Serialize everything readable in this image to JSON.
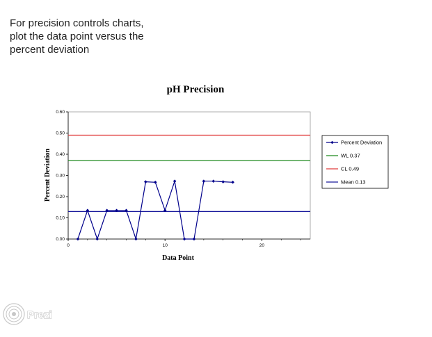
{
  "slide": {
    "lines": [
      "For precision controls charts,",
      "plot the data point versus the",
      "percent deviation"
    ]
  },
  "logo": {
    "text": "Prezi",
    "icon": "prezi-logo-icon"
  },
  "chart_data": {
    "type": "line",
    "title": "pH  Precision",
    "xlabel": "Data Point",
    "ylabel": "Percent Deviation",
    "xlim": [
      0,
      25
    ],
    "ylim": [
      0,
      0.6
    ],
    "x_ticks": [
      0,
      10,
      20
    ],
    "y_ticks": [
      "0.00",
      "0.10",
      "0.20",
      "0.30",
      "0.40",
      "0.50",
      "0.60"
    ],
    "grid": false,
    "legend_position": "right",
    "series": [
      {
        "name": "Percent Deviation",
        "color": "#00008b",
        "marker": "diamond",
        "points": [
          [
            1,
            0.0
          ],
          [
            2,
            0.135
          ],
          [
            3,
            0.0
          ],
          [
            4,
            0.135
          ],
          [
            5,
            0.135
          ],
          [
            6,
            0.135
          ],
          [
            7,
            0.0
          ],
          [
            8,
            0.27
          ],
          [
            9,
            0.268
          ],
          [
            10,
            0.135
          ],
          [
            11,
            0.273
          ],
          [
            12,
            0.0
          ],
          [
            13,
            0.0
          ],
          [
            14,
            0.273
          ],
          [
            15,
            0.273
          ],
          [
            16,
            0.27
          ],
          [
            17,
            0.268
          ]
        ]
      }
    ],
    "reference_lines": [
      {
        "name": "WL 0.37",
        "value": 0.37,
        "color": "#1f8a1f"
      },
      {
        "name": "CL 0.49",
        "value": 0.49,
        "color": "#e03c3c"
      },
      {
        "name": "Mean 0.13",
        "value": 0.13,
        "color": "#1a1a9c"
      }
    ]
  }
}
